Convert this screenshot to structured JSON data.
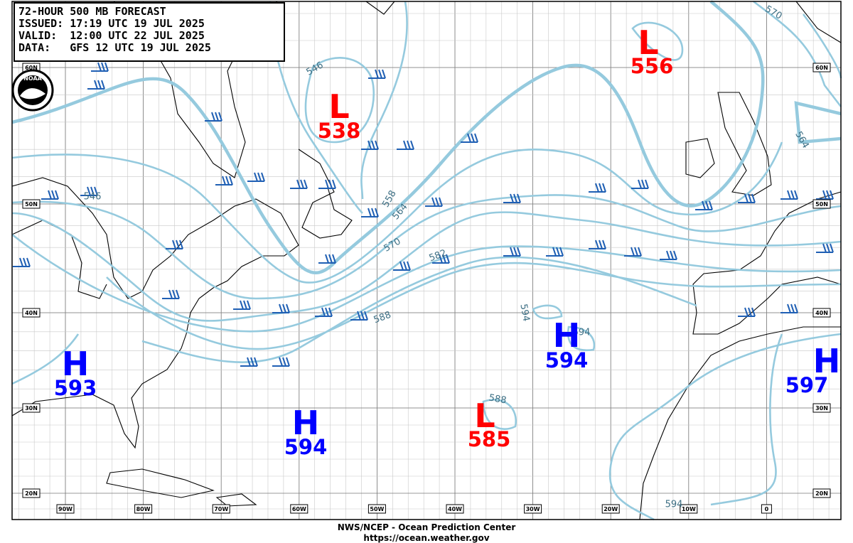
{
  "header": {
    "lines": [
      "72-HOUR 500 MB FORECAST",
      "ISSUED: 17:19 UTC 19 JUL 2025",
      "VALID:  12:00 UTC 22 JUL 2025",
      "DATA:   GFS 12 UTC 19 JUL 2025"
    ]
  },
  "logo": "NOAA",
  "centers": [
    {
      "type": "L",
      "value": 538
    },
    {
      "type": "L",
      "value": 556
    },
    {
      "type": "H",
      "value": 593
    },
    {
      "type": "H",
      "value": 594
    },
    {
      "type": "L",
      "value": 585
    },
    {
      "type": "H",
      "value": 594
    },
    {
      "type": "H",
      "value": 597
    }
  ],
  "contour_labels": [
    546,
    546,
    558,
    564,
    570,
    582,
    588,
    594,
    594,
    588,
    570,
    564,
    594
  ],
  "lat_labels": [
    "60N",
    "50N",
    "40N",
    "30N",
    "20N"
  ],
  "lon_labels": [
    "90W",
    "80W",
    "70W",
    "60W",
    "50W",
    "40W",
    "30W",
    "20W",
    "10W",
    "0"
  ],
  "footer": {
    "line1": "NWS/NCEP - Ocean Prediction Center",
    "line2": "https://ocean.weather.gov"
  }
}
